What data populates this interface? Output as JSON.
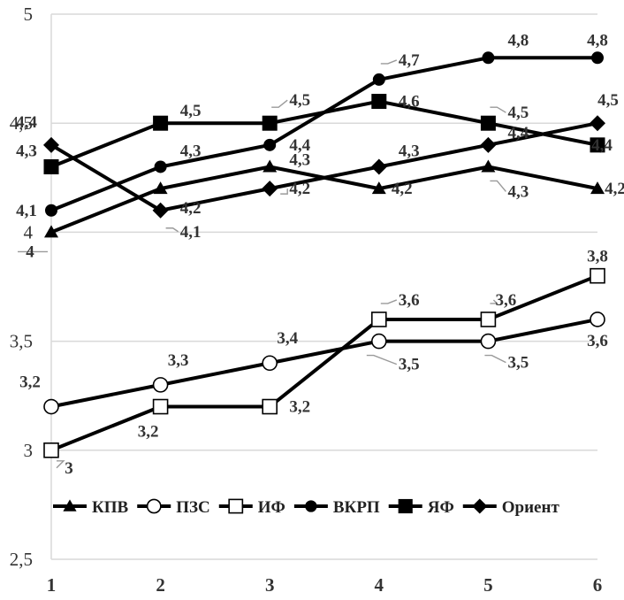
{
  "chart_data": {
    "type": "line",
    "x": [
      1,
      2,
      3,
      4,
      5,
      6
    ],
    "ylim": [
      2.5,
      5
    ],
    "yticks": [
      2.5,
      3,
      3.5,
      4,
      4.5,
      5
    ],
    "ytick_labels": [
      "2,5",
      "3",
      "3,5",
      "4",
      "4,5",
      "5"
    ],
    "grid": true,
    "legend_position": "bottom",
    "title": "",
    "xlabel": "",
    "ylabel": "",
    "series": [
      {
        "name": "КПВ",
        "marker": "triangle",
        "values": [
          4.0,
          4.2,
          4.3,
          4.2,
          4.3,
          4.2
        ],
        "labels": [
          "4",
          "4,2",
          "4,3",
          "4,2",
          "4,3",
          "4,2"
        ]
      },
      {
        "name": "ПЗС",
        "marker": "circle-open",
        "values": [
          3.2,
          3.3,
          3.4,
          3.5,
          3.5,
          3.6
        ],
        "labels": [
          "3,2",
          "3,3",
          "3,4",
          "3,5",
          "3,5",
          "3,6"
        ]
      },
      {
        "name": "ИФ",
        "marker": "square-open",
        "values": [
          3.0,
          3.2,
          3.2,
          3.6,
          3.6,
          3.8
        ],
        "labels": [
          "3",
          "3,2",
          "3,2",
          "3,6",
          "3,6",
          "3,8"
        ]
      },
      {
        "name": "ВКРП",
        "marker": "circle",
        "values": [
          4.1,
          4.3,
          4.4,
          4.7,
          4.8,
          4.8
        ],
        "labels": [
          "4,1",
          "4,3",
          "4,4",
          "4,7",
          "4,8",
          "4,8"
        ]
      },
      {
        "name": "ЯФ",
        "marker": "square",
        "values": [
          4.3,
          4.5,
          4.5,
          4.6,
          4.5,
          4.4
        ],
        "labels": [
          "4,3",
          "4,5",
          "4,5",
          "4,6",
          "4,5",
          "4,4"
        ]
      },
      {
        "name": "Ориент",
        "marker": "diamond",
        "values": [
          4.4,
          4.1,
          4.2,
          4.3,
          4.4,
          4.5
        ],
        "labels": [
          "4,4",
          "4,1",
          "4,2",
          "4,3",
          "4,4",
          "4,5"
        ]
      }
    ]
  }
}
